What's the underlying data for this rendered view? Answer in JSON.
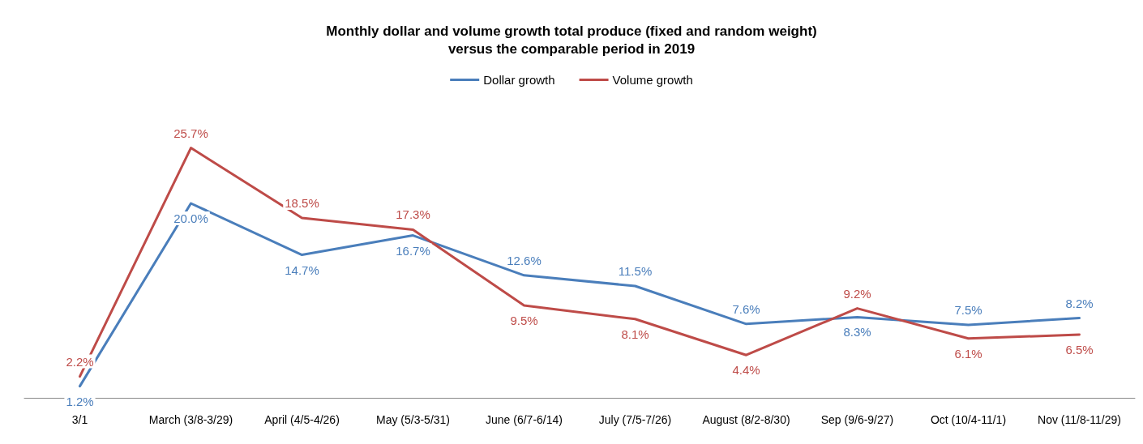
{
  "chart_data": {
    "type": "line",
    "title": "Monthly dollar and volume growth total produce (fixed and random weight)\nversus the comparable period in 2019",
    "categories": [
      "3/1",
      "March (3/8-3/29)",
      "April (4/5-4/26)",
      "May (5/3-5/31)",
      "June (6/7-6/14)",
      "July (7/5-7/26)",
      "August (8/2-8/30)",
      "Sep (9/6-9/27)",
      "Oct (10/4-11/1)",
      "Nov (11/8-11/29)"
    ],
    "series": [
      {
        "name": "Dollar growth",
        "color": "#4a7ebb",
        "values": [
          1.2,
          20.0,
          14.7,
          16.7,
          12.6,
          11.5,
          7.6,
          8.3,
          7.5,
          8.2
        ],
        "value_labels": [
          "1.2%",
          "20.0%",
          "14.7%",
          "16.7%",
          "12.6%",
          "11.5%",
          "7.6%",
          "8.3%",
          "7.5%",
          "8.2%"
        ]
      },
      {
        "name": "Volume growth",
        "color": "#be4b48",
        "values": [
          2.2,
          25.7,
          18.5,
          17.3,
          9.5,
          8.1,
          4.4,
          9.2,
          6.1,
          6.5
        ],
        "value_labels": [
          "2.2%",
          "25.7%",
          "18.5%",
          "17.3%",
          "9.5%",
          "8.1%",
          "4.4%",
          "9.2%",
          "6.1%",
          "6.5%"
        ]
      }
    ],
    "legend": "top",
    "grid": false,
    "marker": "none",
    "line_style": "solid"
  }
}
